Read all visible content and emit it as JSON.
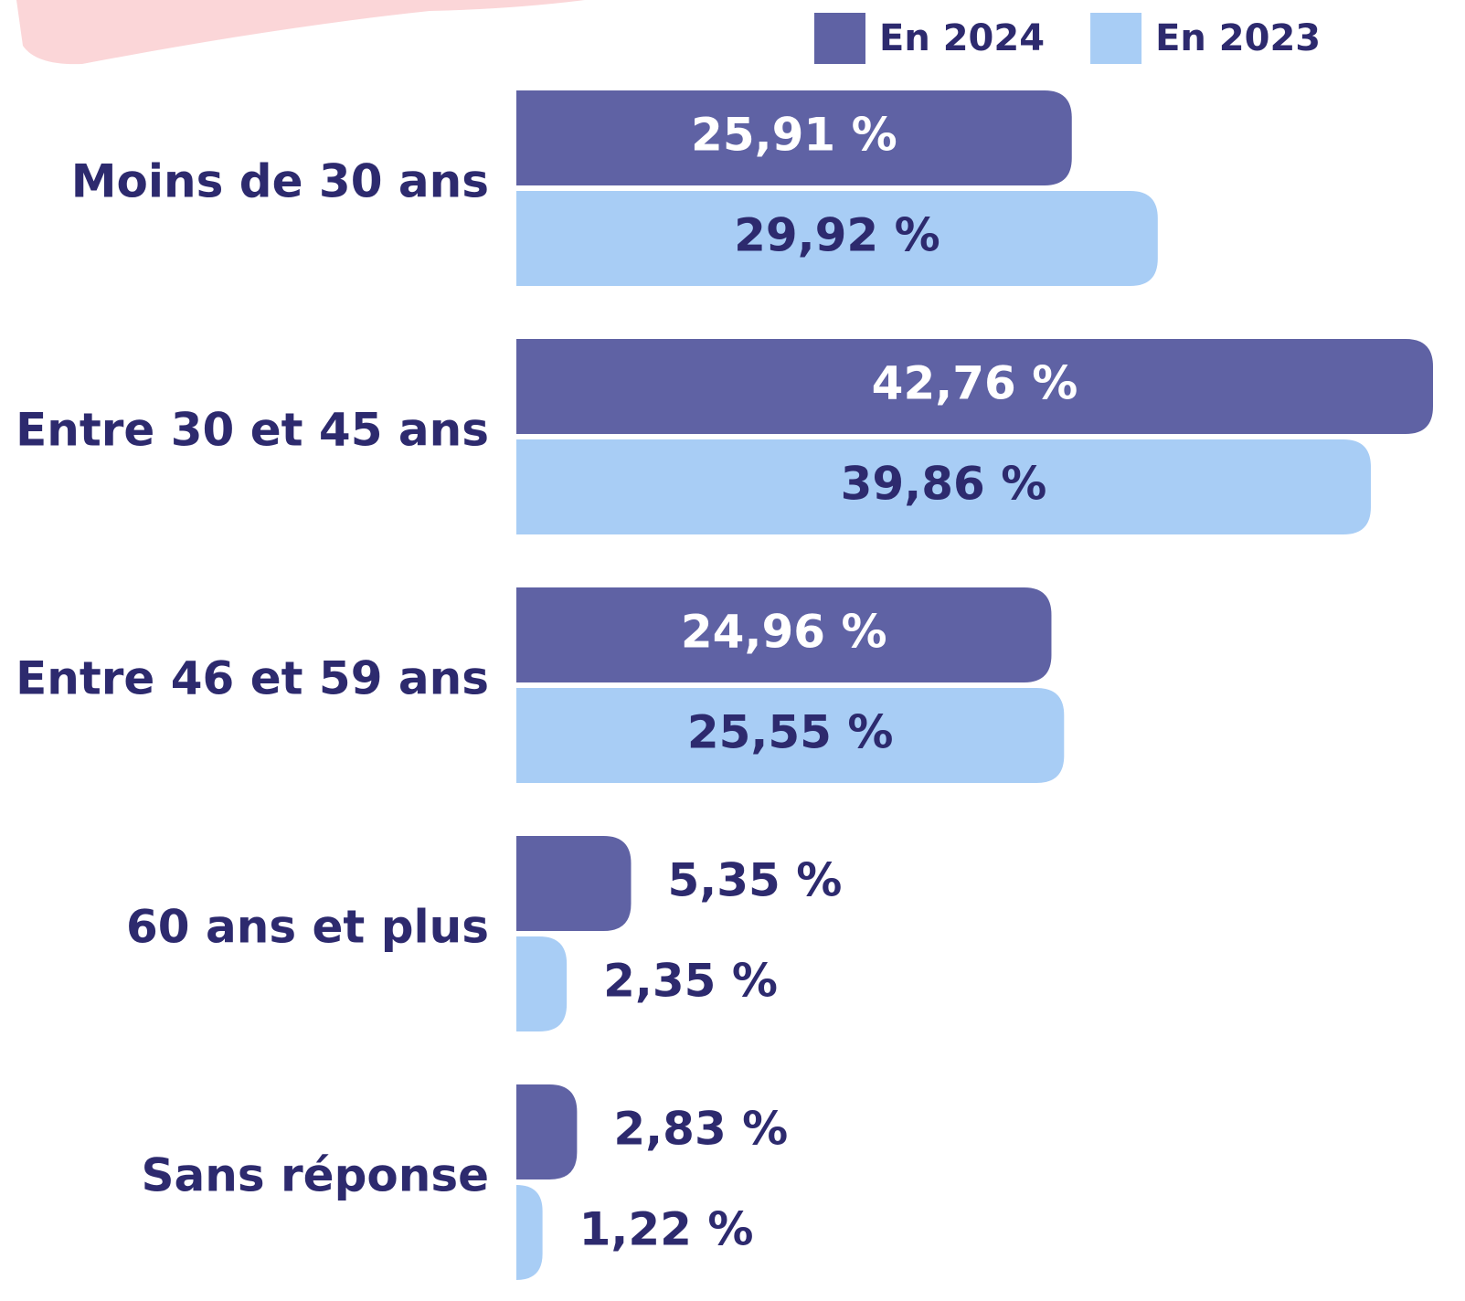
{
  "chart_data": {
    "type": "bar",
    "orientation": "horizontal",
    "legend": "top-right",
    "categories": [
      "Moins de 30 ans",
      "Entre 30 et 45 ans",
      "Entre 46 et 59 ans",
      "60 ans et plus",
      "Sans réponse"
    ],
    "series": [
      {
        "name": "En 2024",
        "color": "#5f62a4",
        "values": [
          25.91,
          42.76,
          24.96,
          5.35,
          2.83
        ],
        "value_labels": [
          "25,91 %",
          "42,76 %",
          "24,96 %",
          "5,35 %",
          "2,83 %"
        ]
      },
      {
        "name": "En 2023",
        "color": "#a8cdf5",
        "values": [
          29.92,
          39.86,
          25.55,
          2.35,
          1.22
        ],
        "value_labels": [
          "29,92 %",
          "39,86 %",
          "25,55 %",
          "2,35 %",
          "1,22 %"
        ]
      }
    ]
  }
}
